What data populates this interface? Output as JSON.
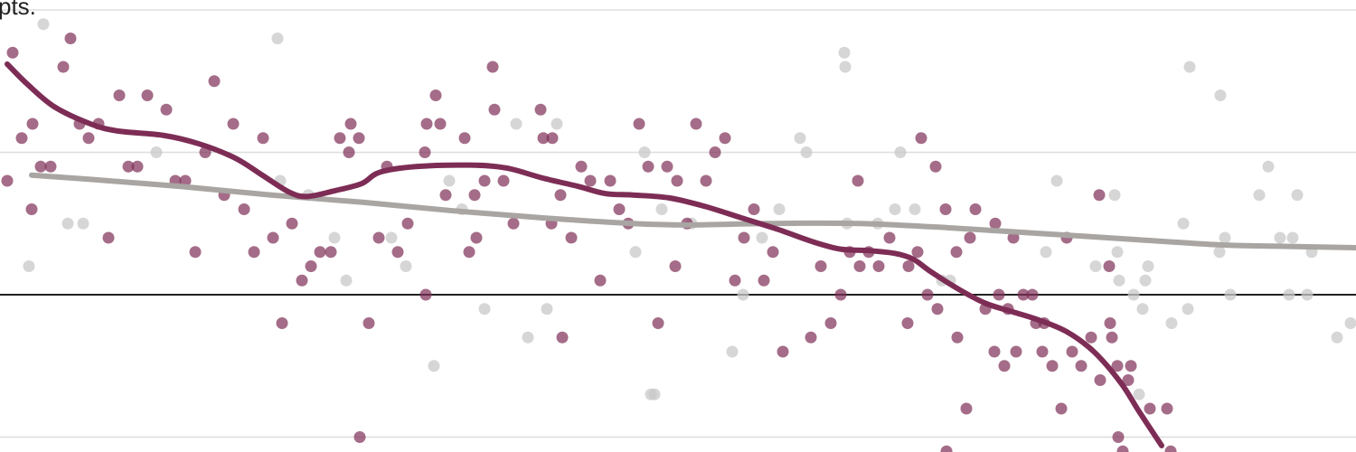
{
  "chart_data": {
    "type": "scatter",
    "title": "",
    "xlabel": "",
    "ylabel": "",
    "top_tick_label": "pts.",
    "ylim": [
      -5.3,
      10.9
    ],
    "gridlines_y": [
      0,
      5,
      10,
      -5
    ],
    "zero_line": 0,
    "colors": {
      "highlight": "#7d2d55",
      "other": "#c8c8c8",
      "grid": "#dddddd",
      "zero": "#222222"
    },
    "series": [
      {
        "color": "#7d2d55",
        "points": [
          [
            8,
            4
          ],
          [
            14,
            8.5
          ],
          [
            24,
            5.5
          ],
          [
            35,
            3
          ],
          [
            36,
            6
          ],
          [
            45,
            4.5
          ],
          [
            56,
            4.5
          ],
          [
            70,
            8
          ],
          [
            78,
            9
          ],
          [
            88,
            6
          ],
          [
            98,
            5.5
          ],
          [
            109,
            6
          ],
          [
            120,
            2
          ],
          [
            132,
            7
          ],
          [
            142,
            4.5
          ],
          [
            152,
            4.5
          ],
          [
            163,
            7
          ],
          [
            184,
            6.5
          ],
          [
            194,
            4
          ],
          [
            205,
            4
          ],
          [
            216,
            1.5
          ],
          [
            227,
            5
          ],
          [
            237,
            7.5
          ],
          [
            248,
            3.5
          ],
          [
            258,
            6
          ],
          [
            270,
            3
          ],
          [
            281,
            1.5
          ],
          [
            291,
            5.5
          ],
          [
            302,
            2
          ],
          [
            312,
            -1
          ],
          [
            323,
            2.5
          ],
          [
            334,
            0.5
          ],
          [
            344,
            1
          ],
          [
            354,
            1.5
          ],
          [
            366,
            1.5
          ],
          [
            376,
            5.5
          ],
          [
            386,
            5
          ],
          [
            388,
            6
          ],
          [
            397,
            5.5
          ],
          [
            398,
            -5
          ],
          [
            408,
            -1
          ],
          [
            419,
            2
          ],
          [
            428,
            4.5
          ],
          [
            440,
            1.5
          ],
          [
            451,
            2.5
          ],
          [
            470,
            5
          ],
          [
            471,
            0
          ],
          [
            472,
            6
          ],
          [
            482,
            7
          ],
          [
            487,
            6
          ],
          [
            493,
            3.5
          ],
          [
            514,
            5.5
          ],
          [
            519,
            1.5
          ],
          [
            525,
            3.5
          ],
          [
            527,
            2
          ],
          [
            536,
            4
          ],
          [
            545,
            8
          ],
          [
            547,
            6.5
          ],
          [
            557,
            4
          ],
          [
            568,
            2.5
          ],
          [
            598,
            6.5
          ],
          [
            601,
            5.5
          ],
          [
            610,
            2.5
          ],
          [
            611,
            5.5
          ],
          [
            620,
            3.5
          ],
          [
            622,
            -1.5
          ],
          [
            632,
            2
          ],
          [
            643,
            4.5
          ],
          [
            653,
            4
          ],
          [
            664,
            0.5
          ],
          [
            675,
            4
          ],
          [
            685,
            3
          ],
          [
            695,
            2.5
          ],
          [
            707,
            6
          ],
          [
            717,
            4.5
          ],
          [
            728,
            -1
          ],
          [
            738,
            4.5
          ],
          [
            749,
            4
          ],
          [
            747,
            1
          ],
          [
            760,
            2.5
          ],
          [
            770,
            6
          ],
          [
            781,
            4
          ],
          [
            791,
            5
          ],
          [
            802,
            5.5
          ],
          [
            813,
            0.5
          ],
          [
            823,
            2
          ],
          [
            834,
            3
          ],
          [
            845,
            0.5
          ],
          [
            855,
            1.5
          ],
          [
            866,
            -2
          ],
          [
            897,
            -1.5
          ],
          [
            908,
            1
          ],
          [
            919,
            -1
          ],
          [
            930,
            0
          ],
          [
            940,
            1.5
          ],
          [
            949,
            4
          ],
          [
            951,
            1
          ],
          [
            961,
            1.5
          ],
          [
            972,
            1
          ],
          [
            984,
            2
          ],
          [
            1004,
            -1
          ],
          [
            1005,
            1
          ],
          [
            1015,
            1.5
          ],
          [
            1019,
            5.5
          ],
          [
            1035,
            4.5
          ],
          [
            1026,
            0
          ],
          [
            1037,
            -0.5
          ],
          [
            1046,
            3
          ],
          [
            1047,
            -5.5
          ],
          [
            1058,
            1.5
          ],
          [
            1059,
            -1.5
          ],
          [
            1069,
            -4
          ],
          [
            1073,
            2
          ],
          [
            1079,
            3
          ],
          [
            1090,
            -0.5
          ],
          [
            1100,
            -2
          ],
          [
            1101,
            2.5
          ],
          [
            1105,
            0
          ],
          [
            1111,
            -2.5
          ],
          [
            1115,
            -0.5
          ],
          [
            1121,
            2
          ],
          [
            1124,
            -2
          ],
          [
            1132,
            0
          ],
          [
            1142,
            0
          ],
          [
            1146,
            -1
          ],
          [
            1153,
            -2
          ],
          [
            1155,
            -1
          ],
          [
            1164,
            -2.5
          ],
          [
            1174,
            -4
          ],
          [
            1180,
            2
          ],
          [
            1186,
            -2
          ],
          [
            1196,
            -2.5
          ],
          [
            1207,
            -1.5
          ],
          [
            1216,
            3.5
          ],
          [
            1217,
            -3
          ],
          [
            1227,
            1
          ],
          [
            1228,
            -1
          ],
          [
            1230,
            -1.5
          ],
          [
            1236,
            -2.5
          ],
          [
            1237,
            -5
          ],
          [
            1242,
            -5.5
          ],
          [
            1248,
            -3
          ],
          [
            1251,
            -2.5
          ],
          [
            1272,
            -4
          ],
          [
            1291,
            -4
          ],
          [
            1295,
            -5.5
          ]
        ]
      },
      {
        "color": "#c8c8c8",
        "points": [
          [
            32,
            1
          ],
          [
            48,
            9.5
          ],
          [
            75,
            2.5
          ],
          [
            92,
            2.5
          ],
          [
            173,
            5
          ],
          [
            307,
            9
          ],
          [
            310,
            4
          ],
          [
            341,
            3.5
          ],
          [
            370,
            2
          ],
          [
            383,
            0.5
          ],
          [
            433,
            2
          ],
          [
            449,
            1
          ],
          [
            480,
            -2.5
          ],
          [
            497,
            4
          ],
          [
            511,
            3
          ],
          [
            536,
            -0.5
          ],
          [
            571,
            6
          ],
          [
            584,
            -1.5
          ],
          [
            605,
            -0.5
          ],
          [
            616,
            6
          ],
          [
            703,
            1.5
          ],
          [
            713,
            5
          ],
          [
            720,
            -3.5
          ],
          [
            724,
            -3.5
          ],
          [
            732,
            3
          ],
          [
            765,
            2.5
          ],
          [
            810,
            -2
          ],
          [
            822,
            0
          ],
          [
            843,
            2
          ],
          [
            862,
            3
          ],
          [
            885,
            5.5
          ],
          [
            892,
            5
          ],
          [
            934,
            8.5
          ],
          [
            935,
            8
          ],
          [
            937,
            2.5
          ],
          [
            971,
            2.5
          ],
          [
            990,
            3
          ],
          [
            996,
            5
          ],
          [
            1012,
            3
          ],
          [
            1042,
            0.5
          ],
          [
            1051,
            0.5
          ],
          [
            1157,
            1.5
          ],
          [
            1169,
            4
          ],
          [
            1212,
            1
          ],
          [
            1233,
            3.5
          ],
          [
            1236,
            1.5
          ],
          [
            1238,
            0.5
          ],
          [
            1254,
            0
          ],
          [
            1264,
            -0.5
          ],
          [
            1270,
            1
          ],
          [
            1267,
            0.5
          ],
          [
            1260,
            -3.5
          ],
          [
            1296,
            -1
          ],
          [
            1309,
            2.5
          ],
          [
            1316,
            8
          ],
          [
            1314,
            -0.5
          ],
          [
            1350,
            7
          ],
          [
            1349,
            1.5
          ],
          [
            1355,
            2
          ],
          [
            1361,
            0
          ],
          [
            1393,
            3.5
          ],
          [
            1403,
            4.5
          ],
          [
            1416,
            2
          ],
          [
            1426,
            0
          ],
          [
            1430,
            2
          ],
          [
            1435,
            3.5
          ],
          [
            1446,
            0
          ],
          [
            1451,
            1.5
          ],
          [
            1479,
            -1.5
          ],
          [
            1494,
            -1
          ]
        ]
      }
    ],
    "trend_lines": [
      {
        "color": "#7d2d55",
        "points": [
          [
            8,
            8.1
          ],
          [
            30,
            7.4
          ],
          [
            60,
            6.6
          ],
          [
            100,
            6
          ],
          [
            130,
            5.75
          ],
          [
            180,
            5.6
          ],
          [
            220,
            5.3
          ],
          [
            260,
            4.8
          ],
          [
            290,
            4.2
          ],
          [
            320,
            3.6
          ],
          [
            340,
            3.45
          ],
          [
            370,
            3.65
          ],
          [
            400,
            3.9
          ],
          [
            420,
            4.3
          ],
          [
            460,
            4.5
          ],
          [
            520,
            4.55
          ],
          [
            560,
            4.45
          ],
          [
            600,
            4.1
          ],
          [
            640,
            3.8
          ],
          [
            670,
            3.55
          ],
          [
            700,
            3.5
          ],
          [
            740,
            3.4
          ],
          [
            780,
            3.1
          ],
          [
            820,
            2.7
          ],
          [
            860,
            2.3
          ],
          [
            900,
            1.85
          ],
          [
            930,
            1.6
          ],
          [
            960,
            1.55
          ],
          [
            990,
            1.45
          ],
          [
            1010,
            1.25
          ],
          [
            1030,
            0.8
          ],
          [
            1060,
            0.2
          ],
          [
            1090,
            -0.3
          ],
          [
            1120,
            -0.6
          ],
          [
            1150,
            -0.9
          ],
          [
            1180,
            -1.3
          ],
          [
            1210,
            -2
          ],
          [
            1240,
            -3.1
          ],
          [
            1260,
            -4.1
          ],
          [
            1285,
            -5.3
          ]
        ]
      },
      {
        "color": "#a8a5a2",
        "points": [
          [
            35,
            4.2
          ],
          [
            100,
            4.05
          ],
          [
            200,
            3.8
          ],
          [
            300,
            3.5
          ],
          [
            400,
            3.25
          ],
          [
            500,
            2.95
          ],
          [
            600,
            2.7
          ],
          [
            700,
            2.5
          ],
          [
            760,
            2.45
          ],
          [
            850,
            2.5
          ],
          [
            950,
            2.5
          ],
          [
            1050,
            2.35
          ],
          [
            1150,
            2.15
          ],
          [
            1250,
            1.95
          ],
          [
            1350,
            1.75
          ],
          [
            1420,
            1.7
          ],
          [
            1500,
            1.65
          ]
        ]
      }
    ]
  }
}
